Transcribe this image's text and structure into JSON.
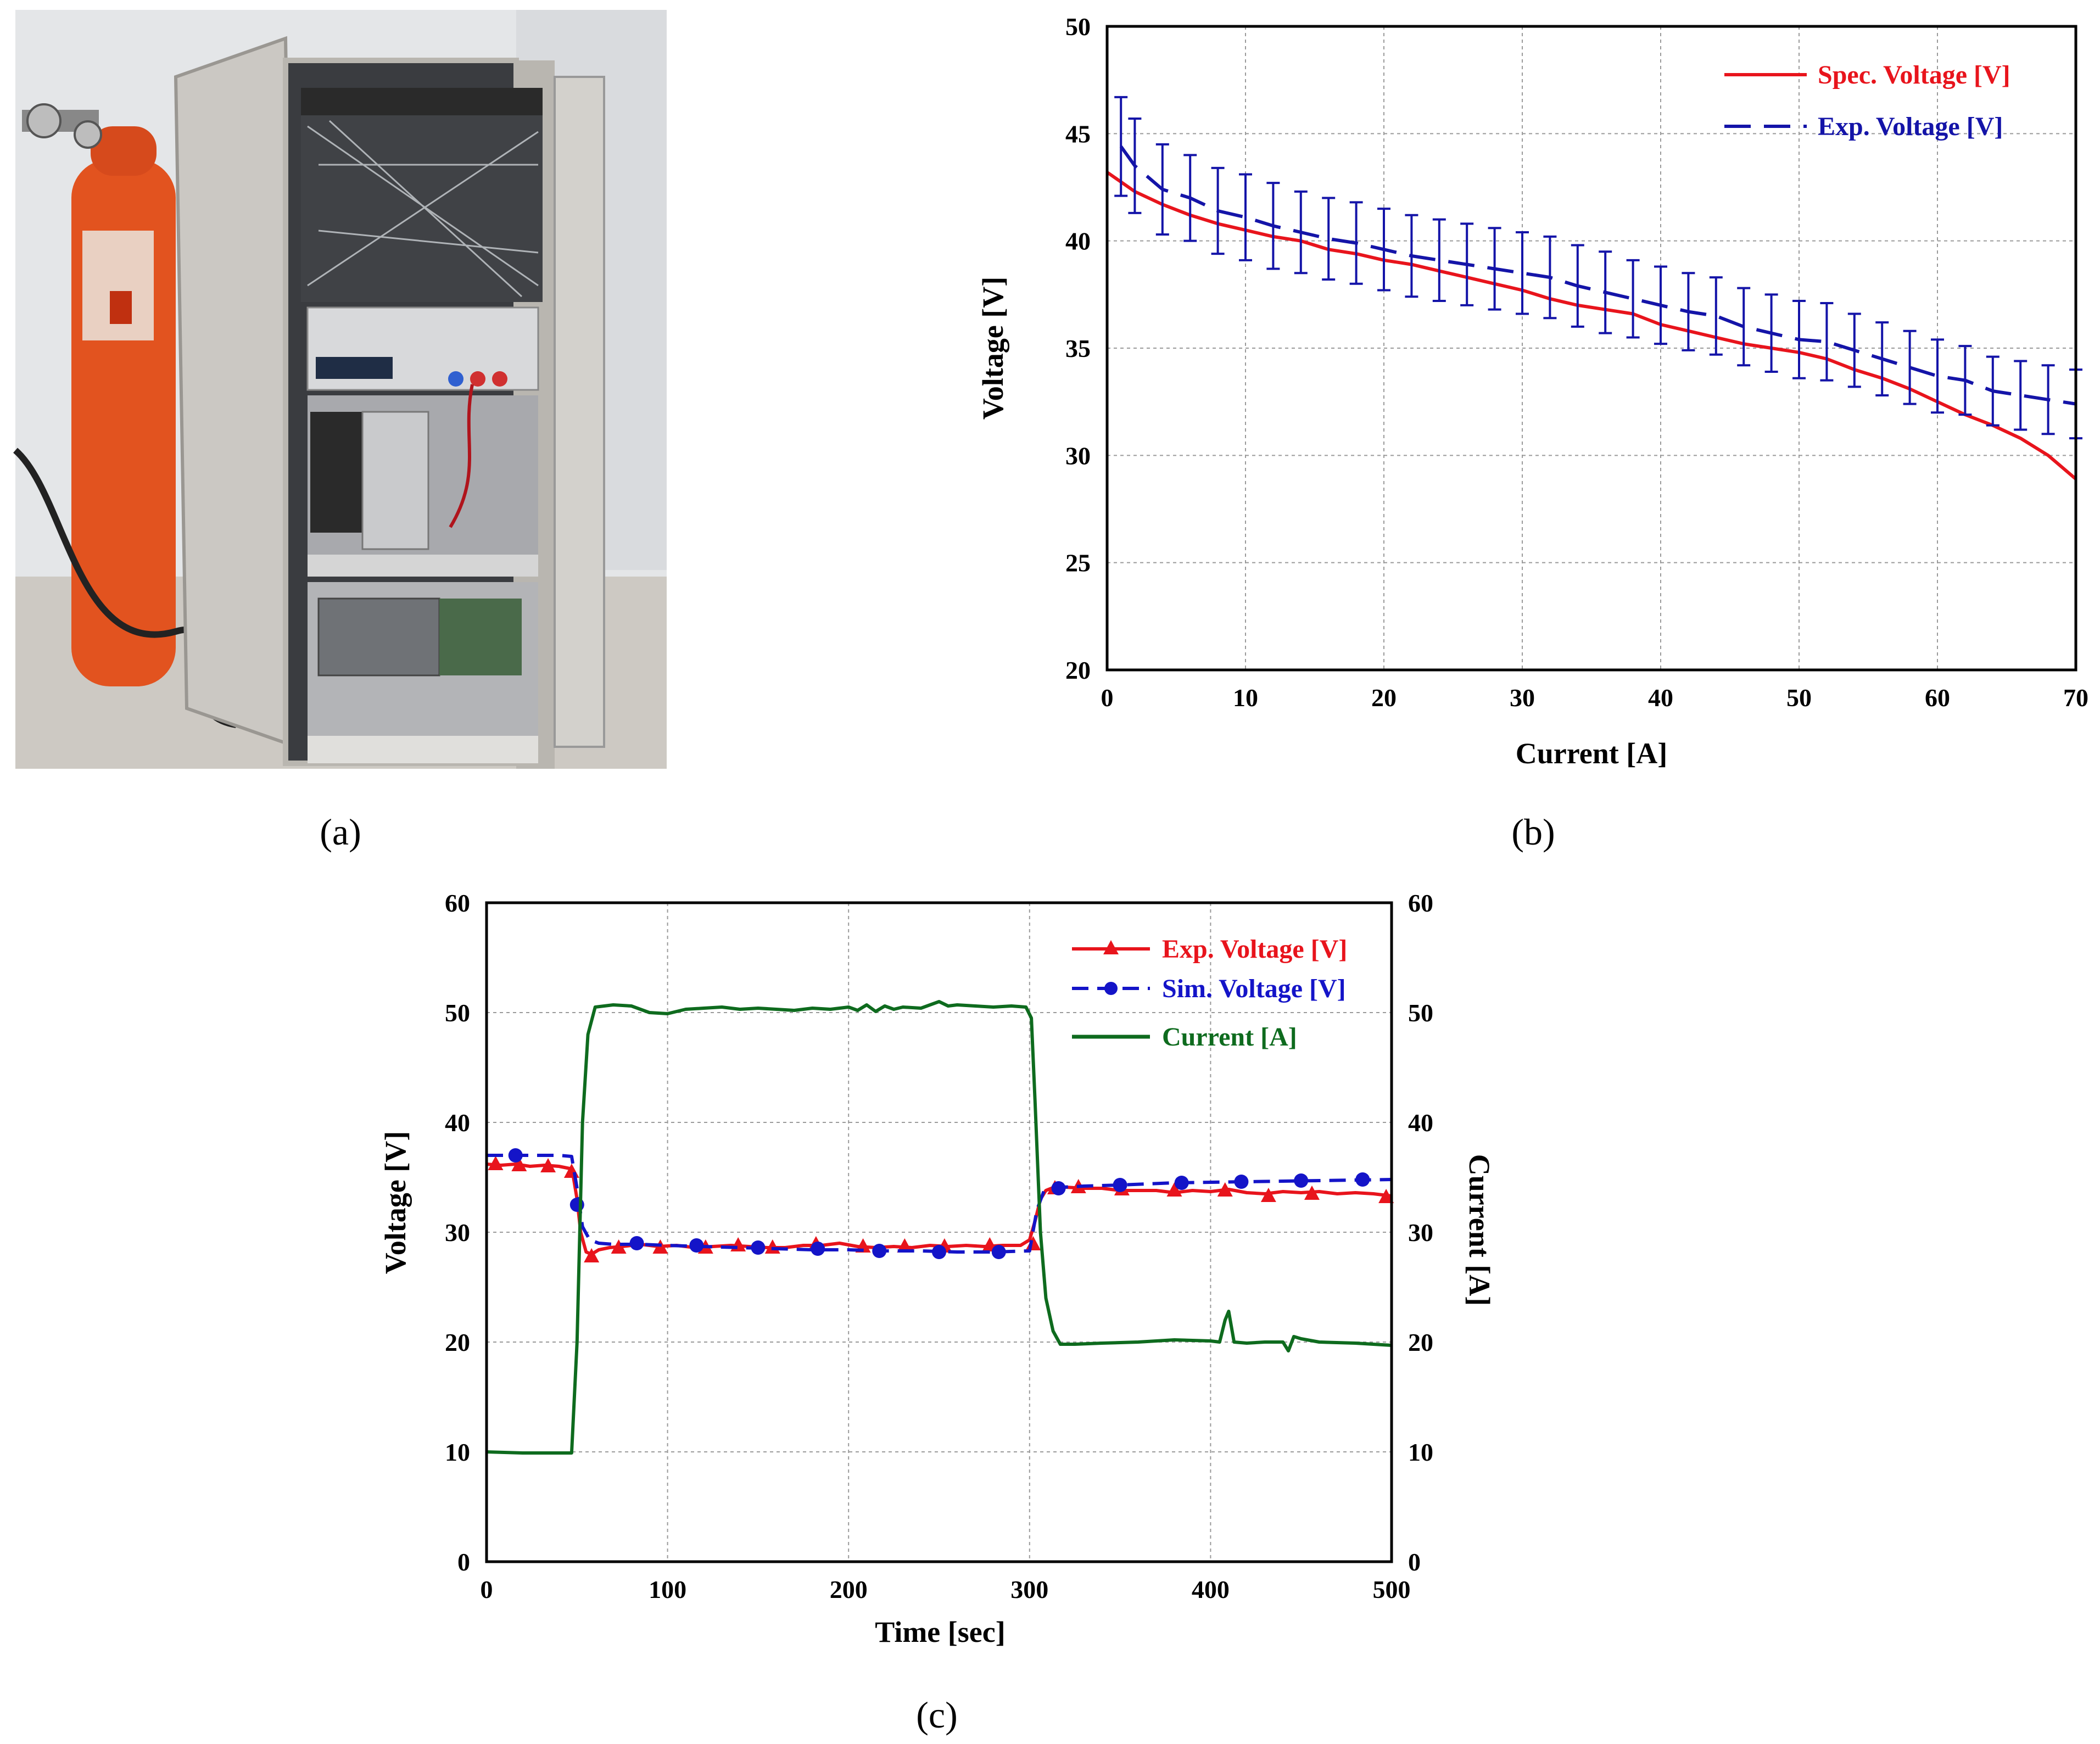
{
  "panels": {
    "a": {
      "caption": "(a)"
    },
    "b": {
      "caption": "(b)"
    },
    "c": {
      "caption": "(c)"
    }
  },
  "photo": {
    "description_icon": "fuel-cell-test-rig-photo-icon",
    "colors": {
      "cylinder": "#e2531f",
      "cabinet": "#c9c5bf",
      "wall": "#e6e8ea",
      "floor": "#c8c4be"
    }
  },
  "chart_data": [
    {
      "id": "b",
      "type": "line",
      "xlabel": "Current [A]",
      "ylabel": "Voltage [V]",
      "xlim": [
        0,
        70
      ],
      "ylim": [
        20,
        50
      ],
      "xticks": [
        "0",
        "10",
        "20",
        "30",
        "40",
        "50",
        "60",
        "70"
      ],
      "yticks": [
        "20",
        "25",
        "30",
        "35",
        "40",
        "45",
        "50"
      ],
      "grid": true,
      "legend_position": "top-right",
      "series": [
        {
          "name": "Spec. Voltage [V]",
          "color": "#e8141c",
          "style": "solid",
          "x": [
            0,
            2,
            4,
            6,
            8,
            10,
            12,
            14,
            16,
            18,
            20,
            22,
            24,
            26,
            28,
            30,
            32,
            34,
            36,
            38,
            40,
            42,
            44,
            46,
            48,
            50,
            52,
            54,
            56,
            58,
            60,
            62,
            64,
            66,
            68,
            70
          ],
          "y": [
            43.2,
            42.3,
            41.7,
            41.2,
            40.8,
            40.5,
            40.2,
            40.0,
            39.6,
            39.4,
            39.1,
            38.9,
            38.6,
            38.3,
            38.0,
            37.7,
            37.3,
            37.0,
            36.8,
            36.6,
            36.1,
            35.8,
            35.5,
            35.2,
            35.0,
            34.8,
            34.5,
            34.0,
            33.6,
            33.1,
            32.5,
            31.9,
            31.4,
            30.8,
            30.0,
            28.9
          ]
        },
        {
          "name": "Exp. Voltage [V]",
          "color": "#1414a8",
          "style": "dashed",
          "x": [
            1,
            2,
            4,
            6,
            8,
            10,
            12,
            14,
            16,
            18,
            20,
            22,
            24,
            26,
            28,
            30,
            32,
            34,
            36,
            38,
            40,
            42,
            44,
            46,
            48,
            50,
            52,
            54,
            56,
            58,
            60,
            62,
            64,
            66,
            68,
            70
          ],
          "y": [
            44.4,
            43.5,
            42.4,
            42.0,
            41.4,
            41.1,
            40.7,
            40.4,
            40.1,
            39.9,
            39.6,
            39.3,
            39.1,
            38.9,
            38.7,
            38.5,
            38.3,
            37.9,
            37.6,
            37.3,
            37.0,
            36.7,
            36.5,
            36.0,
            35.7,
            35.4,
            35.3,
            34.9,
            34.5,
            34.1,
            33.7,
            33.5,
            33.0,
            32.8,
            32.6,
            32.4
          ],
          "error": [
            2.3,
            2.2,
            2.1,
            2.0,
            2.0,
            2.0,
            2.0,
            1.9,
            1.9,
            1.9,
            1.9,
            1.9,
            1.9,
            1.9,
            1.9,
            1.9,
            1.9,
            1.9,
            1.9,
            1.8,
            1.8,
            1.8,
            1.8,
            1.8,
            1.8,
            1.8,
            1.8,
            1.7,
            1.7,
            1.7,
            1.7,
            1.6,
            1.6,
            1.6,
            1.6,
            1.6
          ]
        }
      ]
    },
    {
      "id": "c",
      "type": "line",
      "xlabel": "Time [sec]",
      "ylabel": "Voltage [V]",
      "y2label": "Current [A]",
      "xlim": [
        0,
        500
      ],
      "ylim": [
        0,
        60
      ],
      "y2lim": [
        0,
        60
      ],
      "xticks": [
        "0",
        "100",
        "200",
        "300",
        "400",
        "500"
      ],
      "yticks": [
        "0",
        "10",
        "20",
        "30",
        "40",
        "50",
        "60"
      ],
      "y2ticks": [
        "0",
        "10",
        "20",
        "30",
        "40",
        "50",
        "60"
      ],
      "grid": true,
      "legend_position": "top-right",
      "series": [
        {
          "name": "Exp. Voltage [V]",
          "color": "#e8141c",
          "style": "solid",
          "marker": "triangle",
          "x": [
            0,
            8,
            16,
            24,
            32,
            40,
            46,
            48,
            50,
            52,
            55,
            58,
            62,
            68,
            75,
            85,
            95,
            105,
            115,
            125,
            135,
            145,
            155,
            165,
            175,
            185,
            195,
            205,
            215,
            225,
            235,
            245,
            255,
            265,
            275,
            285,
            295,
            300,
            303,
            306,
            309,
            312,
            320,
            330,
            340,
            350,
            360,
            370,
            380,
            390,
            400,
            410,
            420,
            430,
            440,
            450,
            460,
            470,
            480,
            490,
            500
          ],
          "y": [
            36.2,
            36.1,
            36.2,
            36.0,
            36.1,
            36.0,
            35.8,
            35.0,
            33.0,
            30.0,
            28.2,
            28.0,
            28.4,
            28.6,
            28.7,
            28.9,
            28.7,
            28.8,
            28.6,
            28.7,
            28.8,
            28.7,
            28.6,
            28.6,
            28.8,
            28.8,
            29.0,
            28.7,
            28.6,
            28.7,
            28.6,
            28.8,
            28.7,
            28.8,
            28.7,
            28.8,
            28.8,
            29.3,
            31.0,
            33.0,
            33.8,
            34.0,
            34.1,
            34.0,
            34.0,
            33.8,
            33.8,
            33.8,
            33.6,
            33.8,
            33.7,
            33.9,
            33.6,
            33.5,
            33.7,
            33.6,
            33.7,
            33.5,
            33.6,
            33.5,
            33.3
          ],
          "marker_x": [
            5,
            18,
            34,
            47,
            58,
            73,
            96,
            121,
            139,
            158,
            182,
            208,
            231,
            253,
            278,
            302,
            314,
            327,
            351,
            380,
            408,
            432,
            456,
            497
          ],
          "marker_y": [
            36.2,
            36.1,
            36.0,
            35.5,
            27.8,
            28.6,
            28.6,
            28.6,
            28.8,
            28.6,
            28.9,
            28.7,
            28.7,
            28.7,
            28.8,
            28.9,
            34.0,
            34.1,
            33.9,
            33.8,
            33.8,
            33.3,
            33.5,
            33.2
          ]
        },
        {
          "name": "Sim. Voltage [V]",
          "color": "#1414c8",
          "style": "dashed",
          "marker": "circle",
          "x": [
            0,
            20,
            40,
            47,
            50,
            53,
            57,
            62,
            70,
            85,
            100,
            120,
            140,
            160,
            180,
            200,
            220,
            240,
            260,
            280,
            300,
            304,
            308,
            312,
            318,
            330,
            350,
            380,
            420,
            460,
            500
          ],
          "y": [
            37.0,
            37.0,
            37.0,
            36.9,
            34.0,
            30.5,
            29.3,
            29.0,
            28.9,
            28.9,
            28.8,
            28.7,
            28.6,
            28.5,
            28.4,
            28.4,
            28.3,
            28.3,
            28.2,
            28.2,
            28.3,
            32.0,
            33.8,
            34.0,
            34.1,
            34.2,
            34.3,
            34.5,
            34.6,
            34.7,
            34.8
          ],
          "marker_x": [
            16,
            50,
            83,
            116,
            150,
            183,
            217,
            250,
            283,
            316,
            350,
            384,
            417,
            450,
            484
          ],
          "marker_y": [
            37.0,
            32.5,
            29.0,
            28.8,
            28.6,
            28.5,
            28.3,
            28.2,
            28.2,
            34.0,
            34.3,
            34.5,
            34.6,
            34.7,
            34.8
          ]
        },
        {
          "name": "Current [A]",
          "axis": "right",
          "color": "#0e6b1e",
          "style": "solid",
          "x": [
            0,
            20,
            40,
            47,
            50,
            53,
            56,
            60,
            65,
            70,
            80,
            90,
            100,
            110,
            120,
            130,
            140,
            150,
            160,
            170,
            180,
            190,
            200,
            205,
            210,
            215,
            220,
            225,
            230,
            240,
            250,
            255,
            260,
            270,
            280,
            290,
            298,
            301,
            303,
            306,
            309,
            313,
            317,
            325,
            340,
            360,
            380,
            400,
            405,
            408,
            410,
            413,
            420,
            430,
            440,
            443,
            446,
            450,
            460,
            480,
            500
          ],
          "y": [
            10.0,
            9.9,
            9.9,
            9.9,
            20.0,
            40.0,
            48.0,
            50.5,
            50.6,
            50.7,
            50.6,
            50.0,
            49.9,
            50.3,
            50.4,
            50.5,
            50.3,
            50.4,
            50.3,
            50.2,
            50.4,
            50.3,
            50.5,
            50.2,
            50.7,
            50.1,
            50.6,
            50.3,
            50.5,
            50.4,
            51.0,
            50.6,
            50.7,
            50.6,
            50.5,
            50.6,
            50.5,
            49.5,
            42.0,
            30.0,
            24.0,
            21.0,
            19.8,
            19.8,
            19.9,
            20.0,
            20.2,
            20.1,
            20.0,
            22.0,
            22.8,
            20.0,
            19.9,
            20.0,
            20.0,
            19.2,
            20.5,
            20.3,
            20.0,
            19.9,
            19.7
          ]
        }
      ]
    }
  ]
}
